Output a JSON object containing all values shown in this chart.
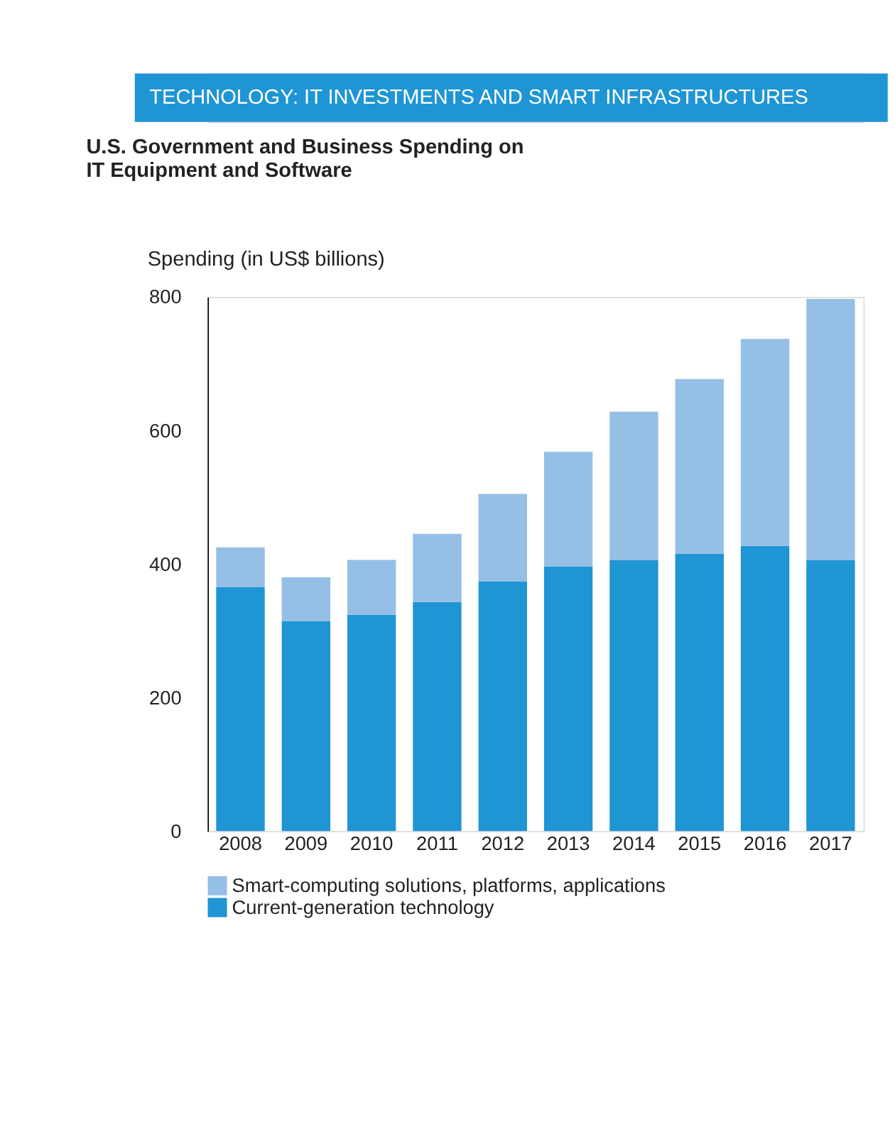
{
  "chart_data": {
    "type": "bar",
    "stacked": true,
    "title": "TECHNOLOGY: IT INVESTMENTS AND SMART INFRASTRUCTURES",
    "subtitle": "U.S. Government and Business Spending on\nIT Equipment and Software",
    "ylabel": "Spending (in US$ billions)",
    "categories": [
      "2008",
      "2009",
      "2010",
      "2011",
      "2012",
      "2013",
      "2014",
      "2015",
      "2016",
      "2017"
    ],
    "series": [
      {
        "name": "Current-generation technology",
        "color": "#1f95d3",
        "values": [
          365,
          314,
          324,
          343,
          374,
          396,
          406,
          415,
          427,
          406
        ]
      },
      {
        "name": "Smart-computing solutions, platforms, applications",
        "color": "#96bfe6",
        "values": [
          60,
          66,
          82,
          102,
          131,
          172,
          222,
          262,
          310,
          391
        ]
      }
    ],
    "ylim": [
      0,
      800
    ],
    "yticks": [
      0,
      200,
      400,
      600,
      800
    ],
    "grid": false,
    "legend": "bottom"
  }
}
